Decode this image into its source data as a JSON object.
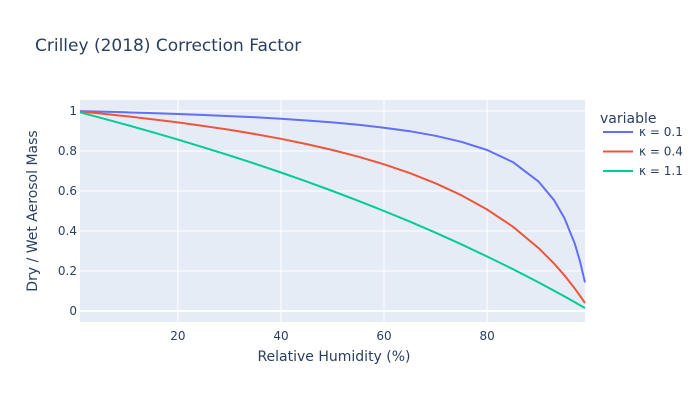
{
  "chart_data": {
    "type": "line",
    "title": "Crilley (2018) Correction Factor",
    "xlabel": "Relative Humidity (%)",
    "ylabel": "Dry / Wet Aerosol Mass",
    "xlim": [
      1,
      99
    ],
    "ylim": [
      -0.055,
      1.055
    ],
    "xticks": [
      20,
      40,
      60,
      80
    ],
    "yticks": [
      0,
      0.2,
      0.4,
      0.6,
      0.8,
      1
    ],
    "ytick_labels": [
      "0",
      "0.2",
      "0.4",
      "0.6",
      "0.8",
      "1"
    ],
    "grid": true,
    "legend": {
      "title": "variable",
      "placement": "right"
    },
    "x": [
      1,
      5,
      10,
      15,
      20,
      25,
      30,
      35,
      40,
      45,
      50,
      55,
      60,
      65,
      70,
      75,
      80,
      85,
      90,
      93,
      95,
      97,
      98,
      99
    ],
    "series": [
      {
        "name": "κ = 0.1",
        "color": "#636efa",
        "values": [
          0.9994,
          0.9968,
          0.9933,
          0.9894,
          0.9851,
          0.9802,
          0.9747,
          0.9684,
          0.9612,
          0.9527,
          0.9429,
          0.931,
          0.9167,
          0.8988,
          0.8761,
          0.8462,
          0.8049,
          0.7444,
          0.6471,
          0.554,
          0.4648,
          0.3379,
          0.2519,
          0.1429
        ]
      },
      {
        "name": "κ = 0.4",
        "color": "#EF553B",
        "values": [
          0.9976,
          0.9874,
          0.9738,
          0.959,
          0.9429,
          0.9252,
          0.9059,
          0.8845,
          0.8609,
          0.8345,
          0.8049,
          0.7714,
          0.7333,
          0.6896,
          0.6387,
          0.5789,
          0.5077,
          0.4213,
          0.3143,
          0.2369,
          0.1784,
          0.1131,
          0.0776,
          0.04
        ]
      },
      {
        "name": "κ = 1.1",
        "color": "#00cc96",
        "values": [
          0.9933,
          0.9661,
          0.931,
          0.8947,
          0.8571,
          0.8182,
          0.7778,
          0.7358,
          0.6923,
          0.6471,
          0.6,
          0.551,
          0.5,
          0.4468,
          0.3913,
          0.3333,
          0.2727,
          0.2093,
          0.1429,
          0.1014,
          0.0732,
          0.0443,
          0.0297,
          0.0149
        ]
      }
    ]
  }
}
